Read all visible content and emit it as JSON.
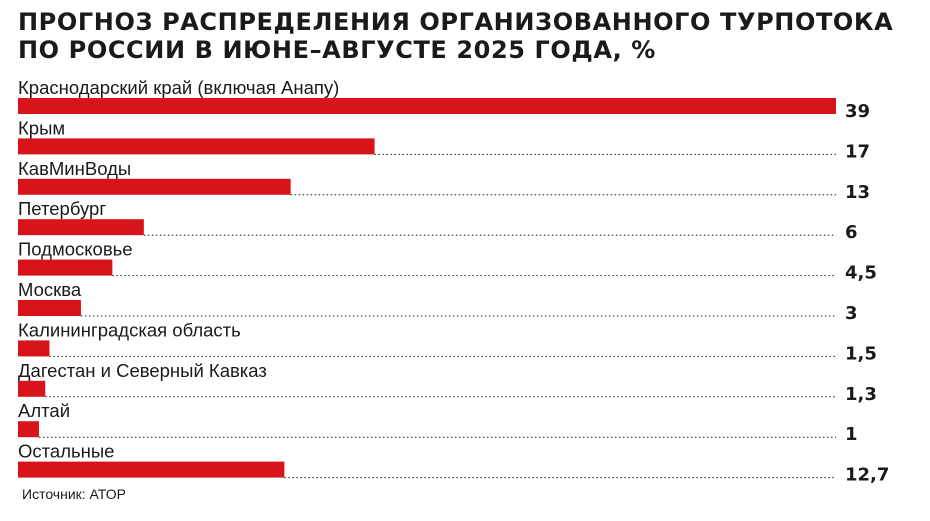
{
  "chart_data": {
    "type": "bar",
    "orientation": "horizontal",
    "title": "ПРОГНОЗ РАСПРЕДЕЛЕНИЯ ОРГАНИЗОВАННОГО ТУРПОТОКА ПО РОССИИ В ИЮНЕ–АВГУСТЕ 2025 ГОДА, %",
    "categories": [
      "Краснодарский край (включая Анапу)",
      "Крым",
      "КавМинВоды",
      "Петербург",
      "Подмосковье",
      "Москва",
      "Калининградская область",
      "Дагестан и Северный Кавказ",
      "Алтай",
      "Остальные"
    ],
    "values": [
      39,
      17,
      13,
      6,
      4.5,
      3,
      1.5,
      1.3,
      1,
      12.7
    ],
    "value_labels": [
      "39",
      "17",
      "13",
      "6",
      "4,5",
      "3",
      "1,5",
      "1,3",
      "1",
      "12,7"
    ],
    "xlim": [
      0,
      39
    ],
    "grid": false,
    "leader_lines": "dotted"
  },
  "source": "Источник: АТОР",
  "colors": {
    "bar": "#d7141a",
    "text": "#1a1a1a",
    "leader": "#1a1a1a"
  }
}
